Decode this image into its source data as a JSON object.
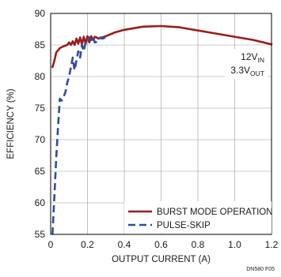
{
  "chart_data": {
    "type": "line",
    "xlabel": "OUTPUT CURRENT (A)",
    "ylabel": "EFFICIENCY (%)",
    "xlim": [
      0,
      1.2
    ],
    "ylim": [
      55,
      90
    ],
    "xticks": [
      "0",
      "0.2",
      "0.4",
      "0.6",
      "0.8",
      "1.0",
      "1.2"
    ],
    "yticks": [
      "55",
      "60",
      "65",
      "70",
      "75",
      "80",
      "85",
      "90"
    ],
    "grid": true,
    "legend_position": "bottom-center",
    "annotation": {
      "line1_main": "12V",
      "line1_sub": "IN",
      "line2_main": "3.3V",
      "line2_sub": "OUT"
    },
    "figure_code": "DN580 F05",
    "series": [
      {
        "name": "BURST MODE OPERATION",
        "color": "#9b1c1c",
        "style": "solid",
        "x": [
          0.01,
          0.02,
          0.03,
          0.05,
          0.07,
          0.09,
          0.1,
          0.11,
          0.12,
          0.13,
          0.14,
          0.15,
          0.16,
          0.17,
          0.18,
          0.19,
          0.2,
          0.21,
          0.22,
          0.23,
          0.24,
          0.25,
          0.26,
          0.27,
          0.28,
          0.3,
          0.35,
          0.4,
          0.5,
          0.6,
          0.7,
          0.8,
          0.9,
          1.0,
          1.1,
          1.2
        ],
        "y": [
          81.5,
          82.5,
          83.8,
          84.5,
          84.8,
          85.0,
          85.4,
          85.0,
          85.6,
          85.0,
          86.0,
          85.2,
          86.2,
          85.1,
          86.3,
          85.2,
          86.4,
          85.4,
          86.4,
          85.8,
          86.3,
          86.2,
          86.0,
          86.1,
          86.2,
          86.4,
          87.0,
          87.4,
          87.9,
          88.0,
          87.8,
          87.3,
          86.8,
          86.3,
          85.8,
          85.1
        ]
      },
      {
        "name": "PULSE-SKIP",
        "color": "#2f4da0",
        "style": "dashed",
        "x": [
          0.01,
          0.02,
          0.03,
          0.04,
          0.05,
          0.06,
          0.07,
          0.08,
          0.09,
          0.1,
          0.11,
          0.12,
          0.13,
          0.14,
          0.15,
          0.16,
          0.17,
          0.18,
          0.19,
          0.2,
          0.21,
          0.22,
          0.23,
          0.24,
          0.25,
          0.26,
          0.27,
          0.28,
          0.29,
          0.3
        ],
        "y": [
          55.0,
          61.0,
          67.0,
          72.0,
          76.5,
          76.2,
          76.8,
          77.5,
          79.0,
          80.0,
          81.5,
          83.0,
          81.0,
          82.5,
          84.0,
          83.0,
          85.0,
          84.0,
          85.5,
          85.5,
          86.2,
          85.8,
          86.3,
          85.4,
          85.5,
          85.8,
          86.2,
          86.0,
          86.1,
          86.2
        ]
      }
    ]
  }
}
